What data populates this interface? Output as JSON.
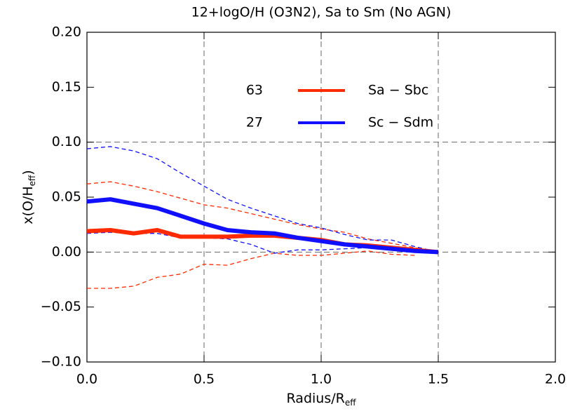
{
  "chart_data": {
    "type": "line",
    "title": "12+logO/H (O3N2), Sa to Sm (No AGN)",
    "x_label": "Radius/R",
    "x_label_sub": "eff",
    "y_label": "x(O/H",
    "y_label_sub": "eff",
    "y_label_end": ")",
    "x": [
      0,
      0.1,
      0.2,
      0.3,
      0.4,
      0.5,
      0.6,
      0.7,
      0.8,
      0.9,
      1.0,
      1.1,
      1.2,
      1.3,
      1.4,
      1.5
    ],
    "series": [
      {
        "name": "Sa − Sbc",
        "count": 63,
        "color": "#ff2a00",
        "values": [
          0.019,
          0.02,
          0.017,
          0.02,
          0.014,
          0.014,
          0.014,
          0.015,
          0.015,
          0.013,
          0.011,
          0.007,
          0.006,
          0.004,
          0.002,
          0.0
        ],
        "upper": [
          0.062,
          0.064,
          0.06,
          0.055,
          0.049,
          0.043,
          0.04,
          0.035,
          0.03,
          0.025,
          0.021,
          0.018,
          0.012,
          0.008,
          0.004,
          0.0
        ],
        "lower": [
          -0.033,
          -0.033,
          -0.031,
          -0.023,
          -0.02,
          -0.011,
          -0.012,
          -0.006,
          -0.001,
          -0.003,
          -0.003,
          -0.001,
          0.001,
          -0.002,
          -0.003,
          null
        ]
      },
      {
        "name": "Sc − Sdm",
        "count": 27,
        "color": "#1010ff",
        "values": [
          0.046,
          0.048,
          0.044,
          0.04,
          0.033,
          0.026,
          0.02,
          0.018,
          0.017,
          0.013,
          0.01,
          0.007,
          0.005,
          0.003,
          0.001,
          0.0
        ],
        "upper": [
          0.094,
          0.096,
          0.092,
          0.085,
          0.072,
          0.06,
          0.048,
          0.04,
          0.033,
          0.026,
          0.022,
          0.016,
          0.011,
          0.011,
          0.005,
          0.0
        ],
        "lower": [
          0.017,
          0.018,
          0.017,
          0.017,
          0.013,
          0.013,
          0.012,
          0.007,
          -0.001,
          0.002,
          0.002,
          0.003,
          0.004,
          0.003,
          0.002,
          0.0
        ]
      }
    ],
    "xlim": [
      0,
      2.0
    ],
    "ylim": [
      -0.1,
      0.2
    ],
    "xticks": [
      {
        "value": 0,
        "label": "0.0"
      },
      {
        "value": 0.5,
        "label": "0.5"
      },
      {
        "value": 1.0,
        "label": "1.0"
      },
      {
        "value": 1.5,
        "label": "1.5"
      },
      {
        "value": 2.0,
        "label": "2.0"
      }
    ],
    "yticks": [
      {
        "value": -0.1,
        "label": "−0.10"
      },
      {
        "value": -0.05,
        "label": "−0.05"
      },
      {
        "value": 0,
        "label": "0.00"
      },
      {
        "value": 0.05,
        "label": "0.05"
      },
      {
        "value": 0.1,
        "label": "0.10"
      },
      {
        "value": 0.15,
        "label": "0.15"
      },
      {
        "value": 0.2,
        "label": "0.20"
      }
    ],
    "grid_x": [
      0.5,
      1.0,
      1.5
    ],
    "grid_y": [
      0.1,
      0
    ]
  }
}
